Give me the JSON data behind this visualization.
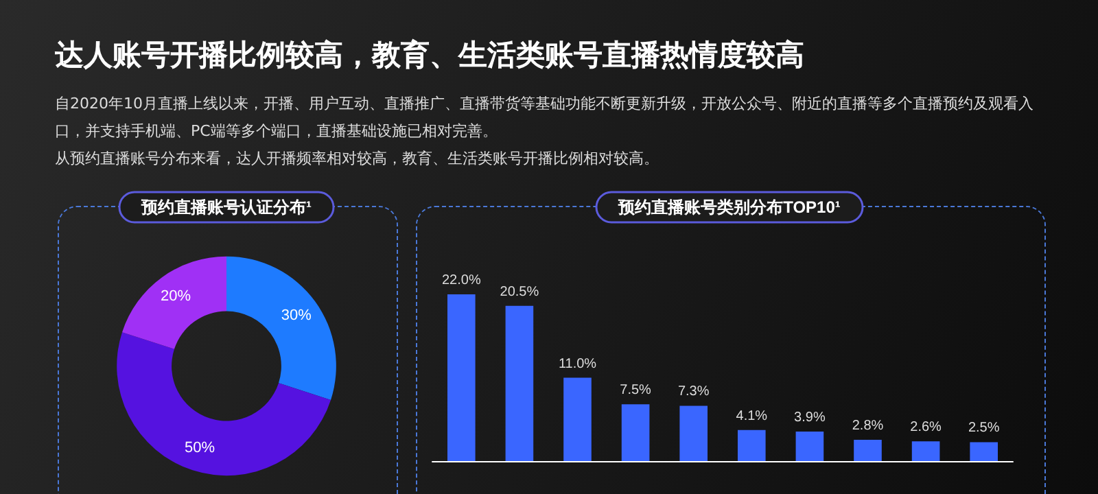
{
  "chart_data": [
    {
      "type": "other",
      "title": "达人账号开播比例较高，教育、生活类账号直播热情度较高",
      "annotations": [
        "自2020年10月直播上线以来，开播、用户互动、直播推广、直播带货等基础功能不断更新升级，开放公众号、附近的直播等多个直播预约及观看入口，并支持手机端、PC端等多个端口，直播基础设施已相对完善。",
        "从预约直播账号分布来看，达人开播频率相对较高，教育、生活类账号开播比例相对较高。"
      ]
    },
    {
      "type": "donut",
      "title": "预约直播账号认证分布¹",
      "categories": [
        null,
        null,
        null
      ],
      "values": [
        30,
        50,
        20
      ],
      "value_labels": [
        "30%",
        "50%",
        "20%"
      ],
      "colors": [
        "#1e7bff",
        "#5512e0",
        "#a030f5"
      ]
    },
    {
      "type": "bar",
      "title": "预约直播账号类别分布TOP10¹",
      "categories": [
        null,
        null,
        null,
        null,
        null,
        null,
        null,
        null,
        null,
        null
      ],
      "values": [
        22.0,
        20.5,
        11.0,
        7.5,
        7.3,
        4.1,
        3.9,
        2.8,
        2.6,
        2.5
      ],
      "value_labels": [
        "22.0%",
        "20.5%",
        "11.0%",
        "7.5%",
        "7.3%",
        "4.1%",
        "3.9%",
        "2.8%",
        "2.6%",
        "2.5%"
      ],
      "color": "#3a66ff"
    }
  ]
}
